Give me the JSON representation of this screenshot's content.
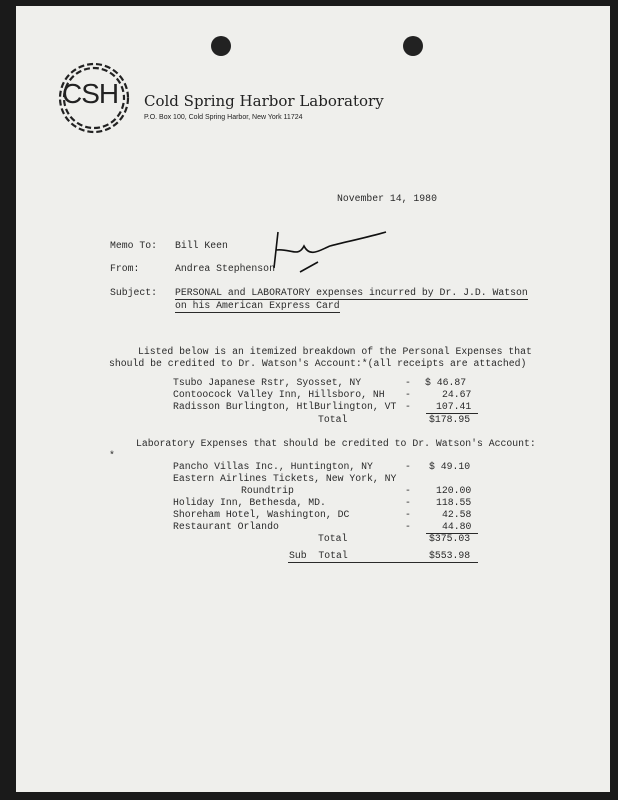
{
  "letterhead": {
    "logo_text": "CSH",
    "org_name": "Cold Spring Harbor Laboratory",
    "address": "P.O. Box 100, Cold Spring Harbor, New York 11724"
  },
  "memo": {
    "date": "November 14, 1980",
    "to_label": "Memo To:",
    "to": "Bill Keen",
    "from_label": "From:",
    "from": "Andrea Stephenson",
    "subject_label": "Subject:",
    "subject_line1": "PERSONAL and LABORATORY expenses incurred by Dr. J.D. Watson",
    "subject_line2": "on his American Express Card",
    "signature": "Andrea"
  },
  "personal": {
    "intro_line1": "Listed below is an itemized breakdown of the Personal Expenses that",
    "intro_line2": "should be credited to Dr. Watson's Account:*(all receipts are attached)",
    "items": [
      {
        "desc": "Tsubo Japanese Rstr, Syosset, NY",
        "dash": "-",
        "amount": "$ 46.87"
      },
      {
        "desc": "Contoocock Valley Inn, Hillsboro, NH",
        "dash": "-",
        "amount": "24.67"
      },
      {
        "desc": "Radisson Burlington, HtlBurlington, VT",
        "dash": "-",
        "amount": "107.41"
      }
    ],
    "total_label": "Total",
    "total": "$178.95"
  },
  "laboratory": {
    "heading": "Laboratory Expenses that should be credited to Dr. Watson's Account:",
    "asterisk": "*",
    "items": [
      {
        "desc": "Pancho Villas Inc., Huntington, NY",
        "dash": "-",
        "amount": "$ 49.10"
      },
      {
        "desc": "Eastern Airlines Tickets, New York, NY",
        "dash": "",
        "amount": ""
      },
      {
        "desc": "Roundtrip",
        "dash": "-",
        "amount": "120.00"
      },
      {
        "desc": "Holiday Inn, Bethesda, MD.",
        "dash": "-",
        "amount": "118.55"
      },
      {
        "desc": "Shoreham Hotel, Washington, DC",
        "dash": "-",
        "amount": "42.58"
      },
      {
        "desc": "Restaurant Orlando",
        "dash": "-",
        "amount": "44.80"
      }
    ],
    "total_label": "Total",
    "total": "$375.03",
    "subtotal_label": "Sub  Total",
    "subtotal": "$553.98"
  }
}
